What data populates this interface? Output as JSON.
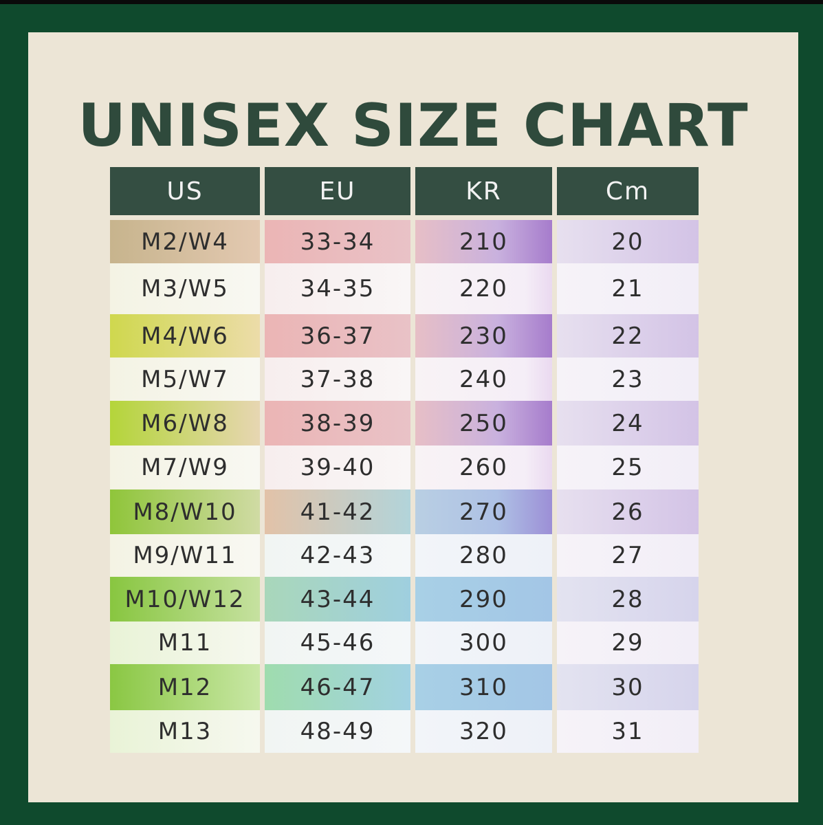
{
  "title": "UNISEX SIZE CHART",
  "table": {
    "headers": [
      "US",
      "EU",
      "KR",
      "Cm"
    ],
    "rows": [
      [
        "M2/W4",
        "33-34",
        "210",
        "20"
      ],
      [
        "M3/W5",
        "34-35",
        "220",
        "21"
      ],
      [
        "M4/W6",
        "36-37",
        "230",
        "22"
      ],
      [
        "M5/W7",
        "37-38",
        "240",
        "23"
      ],
      [
        "M6/W8",
        "38-39",
        "250",
        "24"
      ],
      [
        "M7/W9",
        "39-40",
        "260",
        "25"
      ],
      [
        "M8/W10",
        "41-42",
        "270",
        "26"
      ],
      [
        "M9/W11",
        "42-43",
        "280",
        "27"
      ],
      [
        "M10/W12",
        "43-44",
        "290",
        "28"
      ],
      [
        "M11",
        "45-46",
        "300",
        "29"
      ],
      [
        "M12",
        "46-47",
        "310",
        "30"
      ],
      [
        "M13",
        "48-49",
        "320",
        "31"
      ]
    ]
  },
  "colors": {
    "frame": "#0f4a2d",
    "panel": "#ece5d6",
    "title": "#2f4a3c",
    "header_bg": "#344e42",
    "header_text": "#f2f2f2"
  }
}
